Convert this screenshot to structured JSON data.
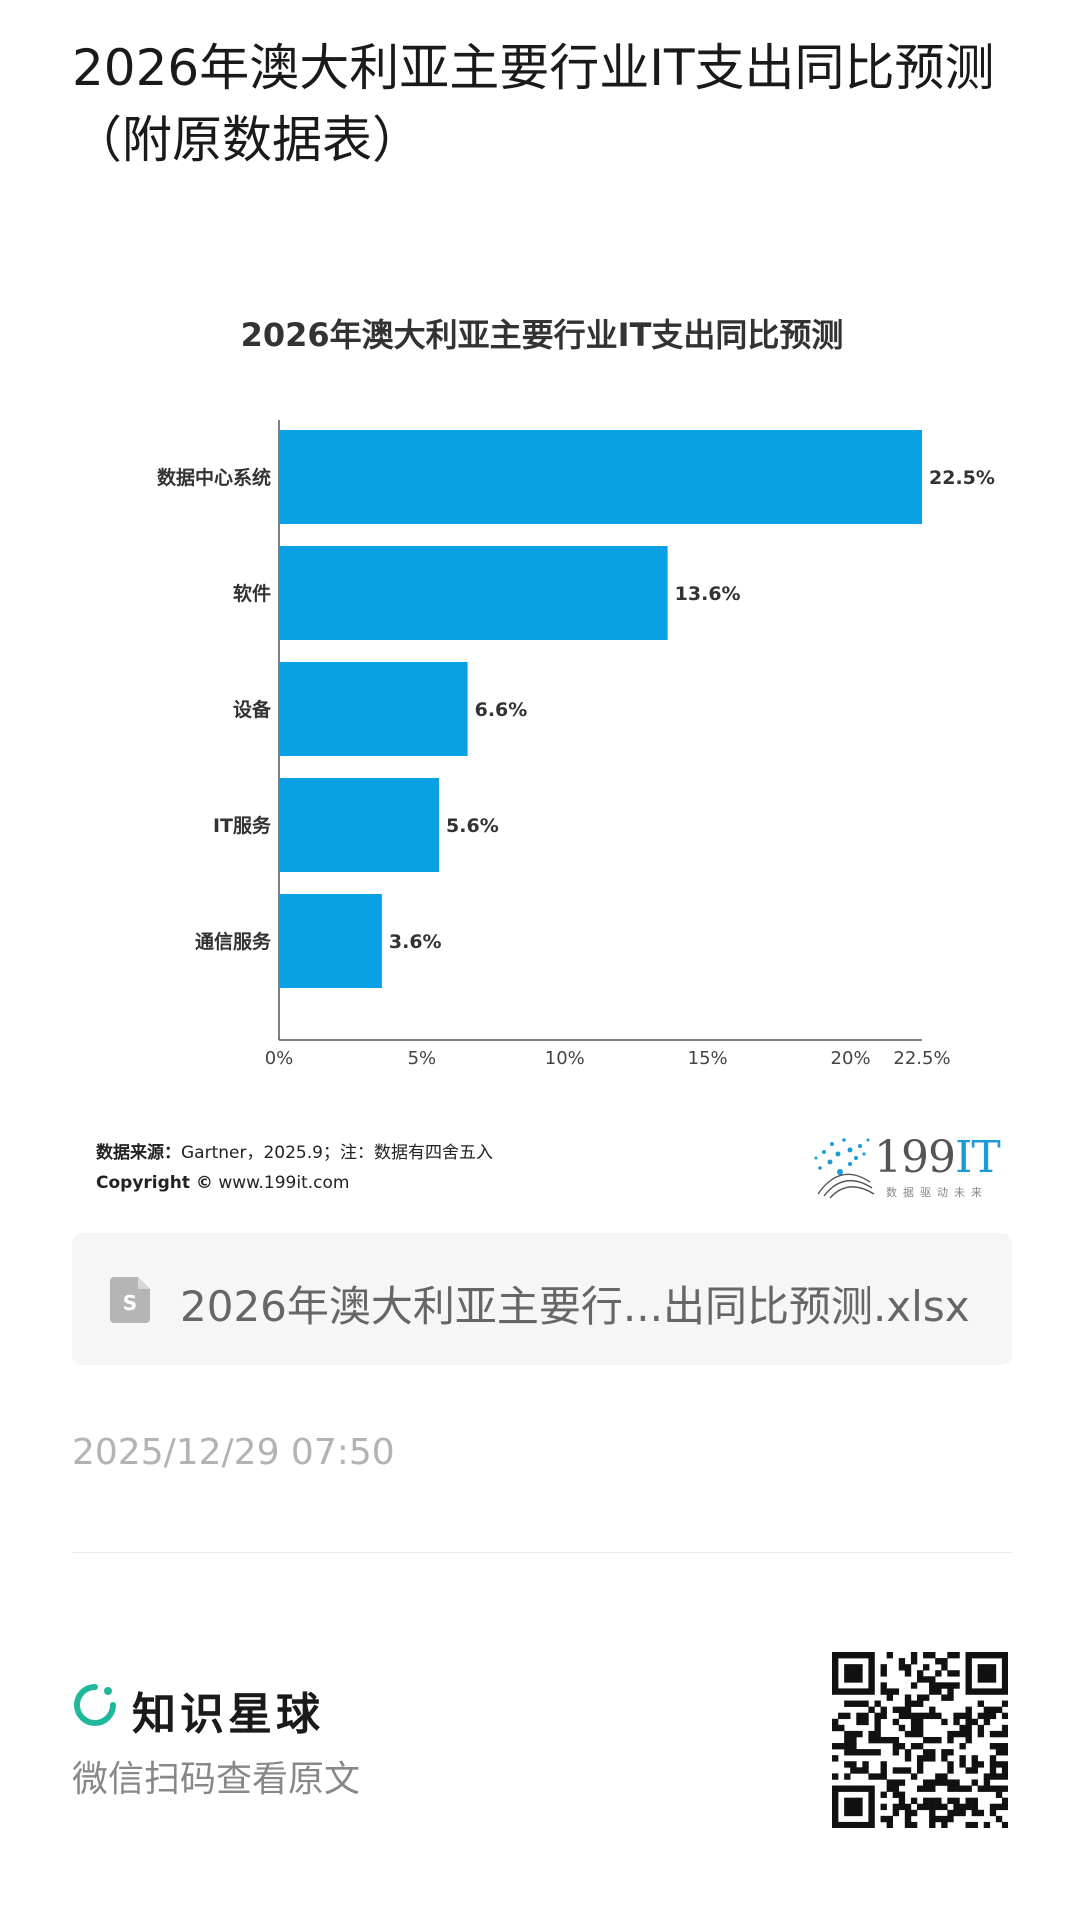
{
  "article": {
    "title": "2026年澳大利亚主要行业IT支出同比预测（附原数据表）"
  },
  "chart_data": {
    "type": "bar",
    "orientation": "horizontal",
    "title": "2026年澳大利亚主要行业IT支出同比预测",
    "categories": [
      "数据中心系统",
      "软件",
      "设备",
      "IT服务",
      "通信服务"
    ],
    "values": [
      22.5,
      13.6,
      6.6,
      5.6,
      3.6
    ],
    "value_labels": [
      "22.5%",
      "13.6%",
      "6.6%",
      "5.6%",
      "3.6%"
    ],
    "xticks": [
      0,
      5,
      10,
      15,
      20,
      22.5
    ],
    "xtick_labels": [
      "0%",
      "5%",
      "10%",
      "15%",
      "20%",
      "22.5%"
    ],
    "xlim": [
      0,
      22.5
    ],
    "bar_color": "#0aa0e4",
    "grid": false,
    "legend": "none"
  },
  "source": {
    "label": "数据来源：",
    "text": "Gartner，2025.9；注：数据有四舍五入",
    "copyright_label": "Copyright ©",
    "site": "www.199it.com"
  },
  "logo": {
    "brand": "199",
    "brand_it": "IT",
    "tagline": "数据驱动未来"
  },
  "attachment": {
    "icon": "spreadsheet-file-icon",
    "file_name": "2026年澳大利亚主要行...出同比预测.xlsx"
  },
  "timestamp": "2025/12/29 07:50",
  "footer": {
    "brand_name": "知识星球",
    "brand_icon": "planet-ring-icon",
    "brand_color": "#1fb89a",
    "scan_text": "微信扫码查看原文"
  }
}
